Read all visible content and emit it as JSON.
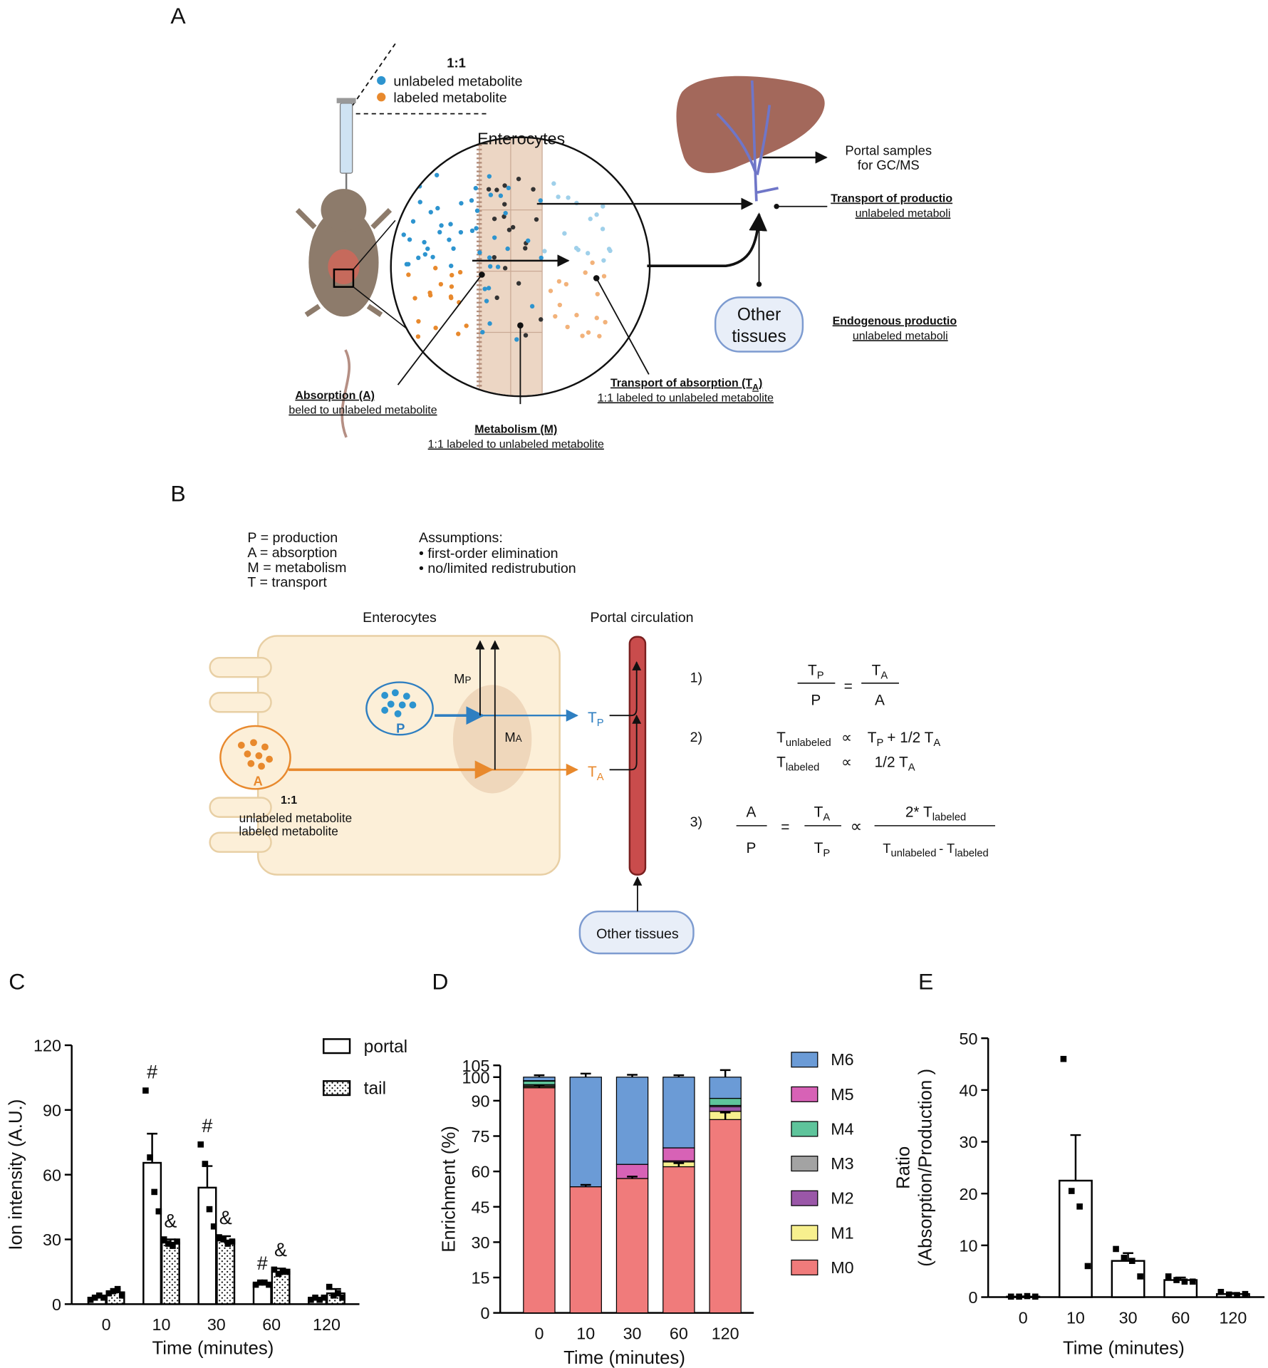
{
  "panel_a": {
    "label": "A",
    "ratio": "1:1",
    "legend": [
      "unlabeled metabolite",
      "labeled metabolite"
    ],
    "enterocytes": "Enterocytes",
    "portal_samples": [
      "Portal samples",
      "for GC/MS"
    ],
    "transport_production": {
      "title": "Transport of productio",
      "text": "unlabeled metaboli"
    },
    "other_tissues": [
      "Other",
      "tissues"
    ],
    "endogenous_production": {
      "title": "Endogenous productio",
      "text": "unlabeled metaboli"
    },
    "absorption": {
      "title": "Absorption (A)",
      "text": "beled to unlabeled metabolite"
    },
    "transport_absorption": {
      "title": [
        "Transport of absorption (T",
        "A",
        ")"
      ],
      "text": "1:1 labeled to unlabeled metabolite"
    },
    "metabolism": {
      "title": "Metabolism (M)",
      "text": "1:1 labeled to unlabeled metabolite"
    }
  },
  "panel_b": {
    "label": "B",
    "definitions": [
      "P = production",
      "A = absorption",
      "M = metabolism",
      "T = transport"
    ],
    "assumptions": [
      "Assumptions:",
      "• first-order elimination",
      "• no/limited redistrubution"
    ],
    "enterocytes": "Enterocytes",
    "portal_circulation": "Portal circulation",
    "m_p": [
      "M",
      "P"
    ],
    "m_a": [
      "M",
      "A"
    ],
    "p": "P",
    "a": "A",
    "t_p": [
      "T",
      "P"
    ],
    "t_a": [
      "T",
      "A"
    ],
    "ratio": "1:1",
    "legend": [
      "unlabeled metabolite",
      "labeled metabolite"
    ],
    "other_tissues": "Other tissues",
    "equation_numbers": [
      "1)",
      "2)",
      "3)"
    ],
    "eq1": {
      "lhs_num": [
        "T",
        "P"
      ],
      "lhs_den": "P",
      "equals": "=",
      "rhs_num": [
        "T",
        "A"
      ],
      "rhs_den": "A"
    },
    "eq2": {
      "line1": [
        "T",
        "unlabeled",
        "∝",
        "T",
        "P",
        "+ 1/2 T",
        "A"
      ],
      "line2": [
        "T",
        "labeled",
        "∝",
        "1/2 T",
        "A"
      ]
    },
    "eq3": {
      "lhs_num": "A",
      "lhs_den": "P",
      "equals": "=",
      "mid_num": [
        "T",
        "A"
      ],
      "mid_den": [
        "T",
        "P"
      ],
      "prop": "∝",
      "rhs_num": [
        "2* T",
        "labeled"
      ],
      "rhs_den": [
        "T",
        "unlabeled",
        "- T",
        "labeled"
      ]
    }
  },
  "chart_data": [
    {
      "type": "bar",
      "panel": "C",
      "xlabel": "Time (minutes)",
      "ylabel": "Ion intensity (A.U.)",
      "categories": [
        "0",
        "10",
        "30",
        "60",
        "120"
      ],
      "ylim": [
        0,
        120
      ],
      "yticks": [
        0,
        30,
        60,
        90,
        120
      ],
      "legend": "top-right",
      "series": [
        {
          "name": "portal",
          "color": "#ffffff",
          "edgecolor": "#000000",
          "values": [
            3,
            65.5,
            54,
            9.5,
            2.5
          ],
          "errors": [
            0.8,
            13.5,
            10,
            0.8,
            0.5
          ],
          "points": [
            [
              2,
              3,
              4,
              3
            ],
            [
              99,
              68,
              52,
              43
            ],
            [
              74,
              65,
              44,
              36
            ],
            [
              9,
              10,
              10,
              9
            ],
            [
              2,
              3,
              2,
              3
            ]
          ],
          "annotations": [
            null,
            "#",
            "#",
            "#",
            null
          ]
        },
        {
          "name": "tail",
          "color": "#ffffff",
          "edgecolor": "#000000",
          "pattern": "dots",
          "values": [
            5.5,
            28.5,
            29.5,
            15,
            5
          ],
          "errors": [
            1.5,
            1.5,
            2,
            1.5,
            2
          ],
          "points": [
            [
              5,
              6,
              7,
              4
            ],
            [
              30,
              28,
              27,
              29
            ],
            [
              31,
              30,
              28,
              29
            ],
            [
              16,
              14,
              15,
              15
            ],
            [
              8,
              4,
              5,
              3
            ]
          ],
          "annotations": [
            null,
            "&",
            "&",
            "&",
            null
          ]
        }
      ]
    },
    {
      "type": "stacked_bar",
      "panel": "D",
      "xlabel": "Time (minutes)",
      "ylabel": "Enrichment (%)",
      "categories": [
        "0",
        "10",
        "30",
        "60",
        "120"
      ],
      "ylim": [
        0,
        105
      ],
      "yticks": [
        0,
        15,
        30,
        45,
        60,
        75,
        90,
        100,
        105
      ],
      "legend": "right",
      "series": [
        {
          "name": "M0",
          "color": "#f07b7b",
          "values": [
            95.5,
            53.5,
            57,
            62,
            82
          ],
          "errors": [
            1,
            0.8,
            0.8,
            1.5,
            3
          ]
        },
        {
          "name": "M1",
          "color": "#f7f08e",
          "values": [
            0.5,
            0,
            0,
            2,
            3.5
          ]
        },
        {
          "name": "M2",
          "color": "#9a57a8",
          "values": [
            0.3,
            0,
            0,
            0.5,
            2
          ]
        },
        {
          "name": "M3",
          "color": "#a3a3a3",
          "values": [
            0.5,
            0,
            0,
            0,
            0.5
          ]
        },
        {
          "name": "M4",
          "color": "#5ec49b",
          "values": [
            1.5,
            0,
            0,
            0,
            3
          ]
        },
        {
          "name": "M5",
          "color": "#d762b6",
          "values": [
            0.2,
            0,
            6,
            5.5,
            0
          ]
        },
        {
          "name": "M6",
          "color": "#6b9bd6",
          "values": [
            1.5,
            46.5,
            37,
            30,
            9
          ],
          "errors": [
            0.8,
            1.5,
            1,
            0.8,
            3
          ]
        }
      ]
    },
    {
      "type": "bar",
      "panel": "E",
      "xlabel": "Time (minutes)",
      "ylabel": [
        "Ratio",
        "(Absorption/Production )"
      ],
      "categories": [
        "0",
        "10",
        "30",
        "60",
        "120"
      ],
      "ylim": [
        0,
        50
      ],
      "yticks": [
        0,
        10,
        20,
        30,
        40,
        50
      ],
      "color": "#ffffff",
      "edgecolor": "#000000",
      "values": [
        0.1,
        22.5,
        7,
        3.3,
        0.6
      ],
      "errors": [
        0.05,
        8.8,
        1.5,
        0.5,
        0.2
      ],
      "points": [
        [
          0.1,
          0.1,
          0.2,
          0.1
        ],
        [
          46,
          20.5,
          17.5,
          6
        ],
        [
          9.3,
          7.6,
          7,
          4
        ],
        [
          4,
          3.3,
          3,
          3
        ],
        [
          1,
          0.5,
          0.4,
          0.6
        ]
      ]
    }
  ]
}
